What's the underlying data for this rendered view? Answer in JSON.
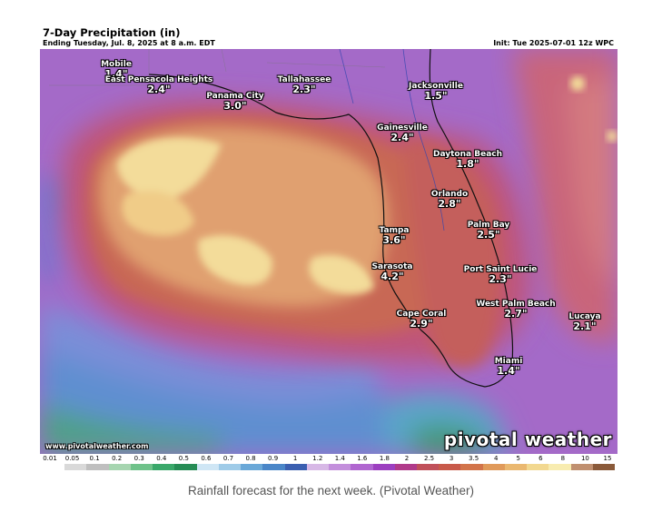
{
  "header": {
    "title": "7-Day Precipitation (in)",
    "subtitle": "Ending Tuesday, Jul. 8, 2025 at 8 a.m. EDT",
    "init": "Init: Tue 2025-07-01 12z WPC"
  },
  "map": {
    "region": "Florida and Gulf of Mexico",
    "cities": [
      {
        "name": "Mobile",
        "value": "1.4\""
      },
      {
        "name": "East Pensacola Heights",
        "value": "2.4\""
      },
      {
        "name": "Panama City",
        "value": "3.0\""
      },
      {
        "name": "Tallahassee",
        "value": "2.3\""
      },
      {
        "name": "Jacksonville",
        "value": "1.5\""
      },
      {
        "name": "Gainesville",
        "value": "2.4\""
      },
      {
        "name": "Daytona Beach",
        "value": "1.8\""
      },
      {
        "name": "Orlando",
        "value": "2.8\""
      },
      {
        "name": "Tampa",
        "value": "3.6\""
      },
      {
        "name": "Palm Bay",
        "value": "2.5\""
      },
      {
        "name": "Sarasota",
        "value": "4.2\""
      },
      {
        "name": "Port Saint Lucie",
        "value": "2.3\""
      },
      {
        "name": "West Palm Beach",
        "value": "2.7\""
      },
      {
        "name": "Cape Coral",
        "value": "2.9\""
      },
      {
        "name": "Lucaya",
        "value": "2.1\""
      },
      {
        "name": "Miami",
        "value": "1.4\""
      }
    ],
    "watermark_site": "www.pivotalweather.com",
    "watermark_brand": "pivotal weather"
  },
  "legend": {
    "ticks": [
      "0.01",
      "0.05",
      "0.1",
      "0.2",
      "0.3",
      "0.4",
      "0.5",
      "0.6",
      "0.7",
      "0.8",
      "0.9",
      "1",
      "1.2",
      "1.4",
      "1.6",
      "1.8",
      "2",
      "2.5",
      "3",
      "3.5",
      "4",
      "5",
      "6",
      "8",
      "10",
      "15"
    ],
    "colors": [
      "#ffffff",
      "#d9d9d9",
      "#bfbfbf",
      "#a6d5b0",
      "#6fc28a",
      "#3aa86a",
      "#268c55",
      "#cfe6f5",
      "#9fcbe8",
      "#6aa8d8",
      "#4a86c8",
      "#3b5fb0",
      "#d7b8e6",
      "#c38fdc",
      "#b066d0",
      "#9c3fc0",
      "#b03a8a",
      "#c0505a",
      "#c85a4a",
      "#d2744a",
      "#e09a5a",
      "#eab870",
      "#f2d890",
      "#f8ecb0",
      "#c09070",
      "#8a5a3a"
    ]
  },
  "caption": "Rainfall forecast for the next week. (Pivotal Weather)"
}
